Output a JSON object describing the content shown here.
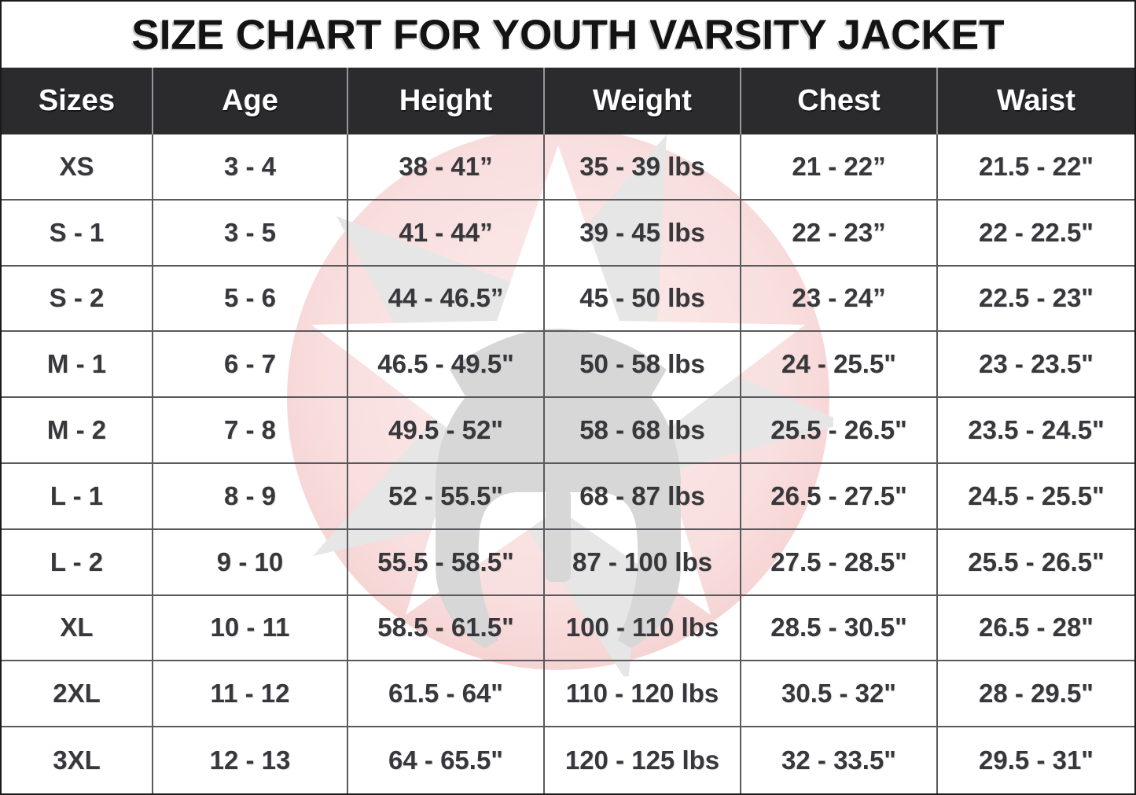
{
  "title": "SIZE CHART FOR YOUTH VARSITY JACKET",
  "chart_data": {
    "type": "table",
    "title": "SIZE CHART FOR YOUTH VARSITY JACKET",
    "columns": [
      "Sizes",
      "Age",
      "Height",
      "Weight",
      "Chest",
      "Waist"
    ],
    "rows": [
      [
        "XS",
        "3 - 4",
        "38 - 41”",
        "35 - 39 lbs",
        "21 - 22”",
        "21.5 - 22\""
      ],
      [
        "S - 1",
        "3 - 5",
        "41 - 44”",
        "39 - 45 lbs",
        "22 - 23”",
        "22 - 22.5\""
      ],
      [
        "S - 2",
        "5 - 6",
        "44 - 46.5”",
        "45 - 50 lbs",
        "23 - 24”",
        "22.5 - 23\""
      ],
      [
        "M - 1",
        "6 - 7",
        "46.5 - 49.5\"",
        "50 - 58 lbs",
        "24 - 25.5\"",
        "23 - 23.5\""
      ],
      [
        "M - 2",
        "7 - 8",
        "49.5 - 52\"",
        "58 - 68 lbs",
        "25.5 - 26.5\"",
        "23.5 - 24.5\""
      ],
      [
        "L - 1",
        "8 - 9",
        "52 - 55.5\"",
        "68 - 87 lbs",
        "26.5 - 27.5\"",
        "24.5 - 25.5\""
      ],
      [
        "L - 2",
        "9 - 10",
        "55.5 - 58.5\"",
        "87 - 100 lbs",
        "27.5 - 28.5\"",
        "25.5 - 26.5\""
      ],
      [
        "XL",
        "10 - 11",
        "58.5 - 61.5\"",
        "100 - 110 lbs",
        "28.5 - 30.5\"",
        "26.5 - 28\""
      ],
      [
        "2XL",
        "11 - 12",
        "61.5 - 64\"",
        "110 - 120 lbs",
        "30.5 - 32\"",
        "28 - 29.5\""
      ],
      [
        "3XL",
        "12 - 13",
        "64 - 65.5\"",
        "120 - 125 lbs",
        "32 - 33.5\"",
        "29.5 - 31\""
      ]
    ]
  },
  "colors": {
    "header_background": "#2b2b2e",
    "header_text": "#ffffff",
    "title_text": "#131313",
    "cell_text": "#38383c",
    "grid_line": "#5a5a5e",
    "watermark_circle_pink": "#f7d6d6",
    "watermark_star_gray": "#e4e4e4",
    "watermark_star_white": "#ffffff",
    "watermark_helmet_gray": "#d7d7d7"
  },
  "watermark": {
    "icon": "spartan-helmet-star-logo"
  }
}
